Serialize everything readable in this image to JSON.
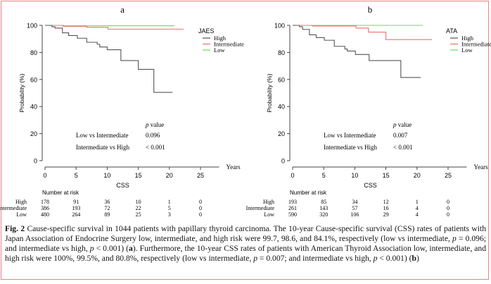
{
  "chart_data": [
    {
      "type": "line",
      "step": true,
      "panel_label": "a",
      "ylabel": "Probability (%)",
      "xlabel": "CSS",
      "x_unit_label": "Years",
      "xlim": [
        0,
        28
      ],
      "ylim": [
        0,
        100
      ],
      "xticks": [
        0,
        5,
        10,
        15,
        20,
        25
      ],
      "yticks": [
        0,
        20,
        40,
        60,
        80,
        100
      ],
      "legend_title": "JAES",
      "legend_position": "top-right",
      "series": [
        {
          "name": "High",
          "color": "#555555",
          "points": [
            [
              0,
              100
            ],
            [
              1.1,
              99
            ],
            [
              1.6,
              98
            ],
            [
              2.8,
              94.5
            ],
            [
              3.8,
              92.5
            ],
            [
              5.2,
              90.5
            ],
            [
              6.7,
              87.5
            ],
            [
              8.4,
              86
            ],
            [
              8.8,
              84
            ],
            [
              10,
              82
            ],
            [
              12.2,
              74
            ],
            [
              15,
              67.5
            ],
            [
              17.5,
              50.5
            ],
            [
              20.5,
              50.5
            ]
          ]
        },
        {
          "name": "Intermediate",
          "color": "#f07070",
          "points": [
            [
              0,
              100
            ],
            [
              2.9,
              99.3
            ],
            [
              6.7,
              98.6
            ],
            [
              10.1,
              97.2
            ],
            [
              22.3,
              97.2
            ]
          ]
        },
        {
          "name": "Low",
          "color": "#66dd66",
          "points": [
            [
              0,
              100
            ],
            [
              3,
              99.7
            ],
            [
              20.8,
              99.7
            ]
          ]
        }
      ],
      "pvalues": {
        "header_italic": "p",
        "header_rest": " value",
        "rows": [
          {
            "label": "Low vs Intermediate",
            "value": "0.096"
          },
          {
            "label": "Intermediate vs High",
            "value": "< 0.001"
          }
        ]
      },
      "risk_table": {
        "title": "Number at risk",
        "rows": [
          {
            "label": "High",
            "values": [
              "178",
              "91",
              "36",
              "10",
              "1",
              "0"
            ]
          },
          {
            "label": "Intermediate",
            "values": [
              "386",
              "193",
              "72",
              "22",
              "5",
              "0"
            ]
          },
          {
            "label": "Low",
            "values": [
              "480",
              "264",
              "89",
              "25",
              "3",
              "0"
            ]
          }
        ]
      }
    },
    {
      "type": "line",
      "step": true,
      "panel_label": "b",
      "ylabel": "Probability (%)",
      "xlabel": "CSS",
      "x_unit_label": "Years",
      "xlim": [
        0,
        28
      ],
      "ylim": [
        0,
        100
      ],
      "xticks": [
        0,
        5,
        10,
        15,
        20,
        25
      ],
      "yticks": [
        0,
        20,
        40,
        60,
        80,
        100
      ],
      "legend_title": "ATA",
      "legend_position": "top-right",
      "series": [
        {
          "name": "High",
          "color": "#555555",
          "points": [
            [
              0,
              100
            ],
            [
              1.1,
              99
            ],
            [
              1.6,
              97
            ],
            [
              2.7,
              93
            ],
            [
              3.8,
              91
            ],
            [
              5.1,
              89
            ],
            [
              6.7,
              84.5
            ],
            [
              8.4,
              82.5
            ],
            [
              8.8,
              81
            ],
            [
              10.1,
              78.5
            ],
            [
              12.3,
              74
            ],
            [
              17.4,
              61.5
            ],
            [
              20.6,
              61.5
            ]
          ]
        },
        {
          "name": "Intermediate",
          "color": "#f07070",
          "points": [
            [
              0,
              100
            ],
            [
              3.2,
              99.5
            ],
            [
              10.2,
              98
            ],
            [
              12.2,
              95
            ],
            [
              15,
              89.5
            ],
            [
              22.4,
              89.5
            ]
          ]
        },
        {
          "name": "Low",
          "color": "#66dd66",
          "points": [
            [
              0,
              100
            ],
            [
              20.9,
              100
            ]
          ]
        }
      ],
      "pvalues": {
        "header_italic": "p",
        "header_rest": " value",
        "rows": [
          {
            "label": "Low vs Intermediate",
            "value": "0.007"
          },
          {
            "label": "Intermediate vs High",
            "value": "< 0.001"
          }
        ]
      },
      "risk_table": {
        "title": "Number at risk",
        "rows": [
          {
            "label": "High",
            "values": [
              "193",
              "85",
              "34",
              "12",
              "1",
              "0"
            ]
          },
          {
            "label": "Intermediate",
            "values": [
              "261",
              "143",
              "57",
              "16",
              "4",
              "0"
            ]
          },
          {
            "label": "Low",
            "values": [
              "590",
              "320",
              "106",
              "29",
              "4",
              "0"
            ]
          }
        ]
      }
    }
  ],
  "caption": {
    "fig_label": "Fig. 2",
    "segments": [
      {
        "t": "  Cause-specific survival in 1044 patients with papillary thyroid carcinoma. The 10-year Cause-specific survival (CSS) rates of patients with Japan Association of Endocrine Surgery low, intermediate, and high risk were 99.7, 98.6, and 84.1%, respectively (low vs intermediate, "
      },
      {
        "t": "p",
        "i": true
      },
      {
        "t": " = 0.096; and intermediate vs high, "
      },
      {
        "t": "p",
        "i": true
      },
      {
        "t": " < 0.001) ("
      },
      {
        "t": "a",
        "b": true
      },
      {
        "t": "). Furthermore, the 10-year CSS rates of patients with American Thyroid Association low, intermediate, and high risk were 100%, 99.5%, and 80.8%, respectively (low vs intermediate, "
      },
      {
        "t": "p",
        "i": true
      },
      {
        "t": " = 0.007; and intermediate vs high, "
      },
      {
        "t": "p",
        "i": true
      },
      {
        "t": " < 0.001) ("
      },
      {
        "t": "b",
        "b": true
      },
      {
        "t": ")"
      }
    ]
  },
  "colors": {
    "frame": "#f08080",
    "high": "#555555",
    "intermediate": "#f07070",
    "low": "#66dd66"
  }
}
